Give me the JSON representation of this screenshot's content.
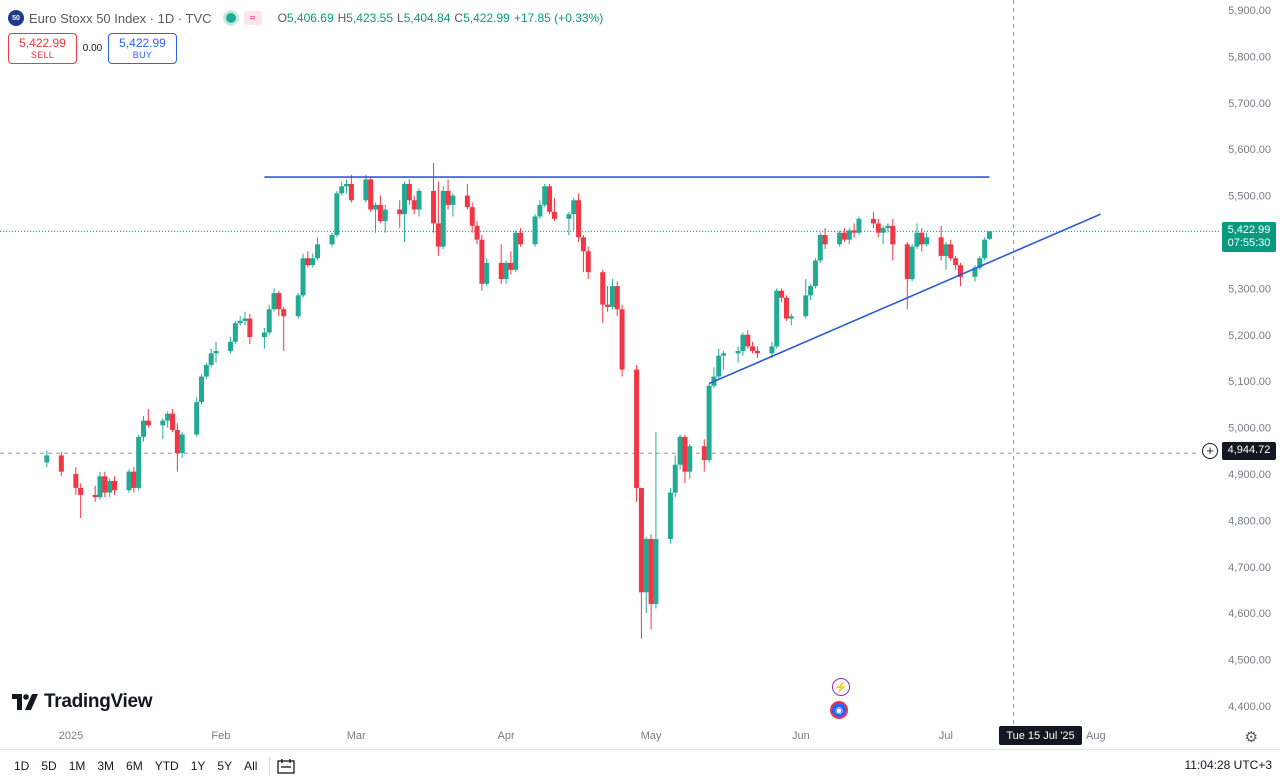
{
  "header": {
    "badge": "50",
    "title": "Euro Stoxx 50 Index · 1D · TVC",
    "ohlc": {
      "o_key": "O",
      "o": "5,406.69",
      "h_key": "H",
      "h": "5,423.55",
      "l_key": "L",
      "l": "5,404.84",
      "c_key": "C",
      "c": "5,422.99",
      "chg": "+17.85 (+0.33%)"
    }
  },
  "trade": {
    "sell_price": "5,422.99",
    "sell_label": "SELL",
    "spread": "0.00",
    "buy_price": "5,422.99",
    "buy_label": "BUY"
  },
  "brand": {
    "name": "TradingView"
  },
  "price_labels": {
    "current": "5,422.99",
    "countdown": "07:55:30",
    "crosshair": "4,944.72"
  },
  "crosshair_date": "Tue 15 Jul '25",
  "bottom": {
    "ranges": [
      "1D",
      "5D",
      "1M",
      "3M",
      "6M",
      "YTD",
      "1Y",
      "5Y",
      "All"
    ],
    "clock": "11:04:28 UTC+3"
  },
  "colors": {
    "up": "#22ab94",
    "down": "#f23645",
    "trendline": "#2a5bd7",
    "accent": "#2962ff"
  },
  "chart_data": {
    "type": "candlestick",
    "title": "",
    "ylim": [
      4350,
      5920
    ],
    "yticks": [
      4400,
      4500,
      4600,
      4700,
      4800,
      4900,
      5000,
      5100,
      5200,
      5300,
      5400,
      5500,
      5600,
      5700,
      5800,
      5900
    ],
    "ytick_labels": [
      "4,400.00",
      "4,500.00",
      "4,600.00",
      "4,700.00",
      "4,800.00",
      "4,900.00",
      "5,000.00",
      "5,100.00",
      "5,200.00",
      "5,300.00",
      "5,400.00",
      "5,500.00",
      "5,600.00",
      "5,700.00",
      "5,800.00",
      "5,900.00"
    ],
    "xticks": [
      {
        "label": "2025",
        "date": "2025-01-01"
      },
      {
        "label": "Feb",
        "date": "2025-02-01"
      },
      {
        "label": "Mar",
        "date": "2025-03-01"
      },
      {
        "label": "Apr",
        "date": "2025-04-01"
      },
      {
        "label": "May",
        "date": "2025-05-01"
      },
      {
        "label": "Jun",
        "date": "2025-06-01"
      },
      {
        "label": "Jul",
        "date": "2025-07-01"
      },
      {
        "label": "Aug",
        "date": "2025-08-01"
      }
    ],
    "candles": [
      [
        "2024-12-27",
        4925,
        4950,
        4915,
        4940
      ],
      [
        "2024-12-30",
        4940,
        4948,
        4895,
        4905
      ],
      [
        "2025-01-02",
        4900,
        4915,
        4855,
        4870
      ],
      [
        "2025-01-03",
        4870,
        4880,
        4805,
        4855
      ],
      [
        "2025-01-06",
        4855,
        4875,
        4840,
        4850
      ],
      [
        "2025-01-07",
        4850,
        4905,
        4845,
        4895
      ],
      [
        "2025-01-08",
        4895,
        4905,
        4850,
        4860
      ],
      [
        "2025-01-09",
        4860,
        4890,
        4850,
        4885
      ],
      [
        "2025-01-10",
        4885,
        4895,
        4855,
        4865
      ],
      [
        "2025-01-13",
        4865,
        4910,
        4860,
        4905
      ],
      [
        "2025-01-14",
        4905,
        4915,
        4860,
        4870
      ],
      [
        "2025-01-15",
        4870,
        4985,
        4865,
        4980
      ],
      [
        "2025-01-16",
        4980,
        5025,
        4970,
        5015
      ],
      [
        "2025-01-17",
        5015,
        5040,
        5000,
        5005
      ],
      [
        "2025-01-20",
        5005,
        5020,
        4975,
        5015
      ],
      [
        "2025-01-21",
        5015,
        5035,
        5000,
        5030
      ],
      [
        "2025-01-22",
        5030,
        5040,
        4990,
        4995
      ],
      [
        "2025-01-23",
        4995,
        5010,
        4905,
        4945
      ],
      [
        "2025-01-24",
        4945,
        4990,
        4935,
        4985
      ],
      [
        "2025-01-27",
        4985,
        5065,
        4980,
        5055
      ],
      [
        "2025-01-28",
        5055,
        5115,
        5050,
        5110
      ],
      [
        "2025-01-29",
        5110,
        5140,
        5105,
        5135
      ],
      [
        "2025-01-30",
        5135,
        5170,
        5130,
        5160
      ],
      [
        "2025-01-31",
        5160,
        5185,
        5140,
        5165
      ],
      [
        "2025-02-03",
        5165,
        5195,
        5160,
        5185
      ],
      [
        "2025-02-04",
        5185,
        5230,
        5180,
        5225
      ],
      [
        "2025-02-05",
        5225,
        5240,
        5220,
        5230
      ],
      [
        "2025-02-06",
        5230,
        5250,
        5220,
        5235
      ],
      [
        "2025-02-07",
        5235,
        5245,
        5180,
        5195
      ],
      [
        "2025-02-10",
        5195,
        5215,
        5170,
        5205
      ],
      [
        "2025-02-11",
        5205,
        5265,
        5200,
        5255
      ],
      [
        "2025-02-12",
        5255,
        5300,
        5250,
        5290
      ],
      [
        "2025-02-13",
        5290,
        5295,
        5240,
        5255
      ],
      [
        "2025-02-14",
        5255,
        5260,
        5165,
        5240
      ],
      [
        "2025-02-17",
        5240,
        5290,
        5235,
        5285
      ],
      [
        "2025-02-18",
        5285,
        5375,
        5280,
        5365
      ],
      [
        "2025-02-19",
        5365,
        5380,
        5345,
        5350
      ],
      [
        "2025-02-20",
        5350,
        5375,
        5345,
        5365
      ],
      [
        "2025-02-21",
        5365,
        5410,
        5360,
        5395
      ],
      [
        "2025-02-24",
        5395,
        5420,
        5390,
        5415
      ],
      [
        "2025-02-25",
        5415,
        5510,
        5410,
        5505
      ],
      [
        "2025-02-26",
        5505,
        5530,
        5500,
        5520
      ],
      [
        "2025-02-27",
        5520,
        5535,
        5505,
        5525
      ],
      [
        "2025-02-28",
        5525,
        5545,
        5485,
        5490
      ],
      [
        "2025-03-03",
        5490,
        5545,
        5485,
        5535
      ],
      [
        "2025-03-04",
        5535,
        5540,
        5465,
        5470
      ],
      [
        "2025-03-05",
        5470,
        5485,
        5420,
        5480
      ],
      [
        "2025-03-06",
        5480,
        5500,
        5440,
        5445
      ],
      [
        "2025-03-07",
        5445,
        5480,
        5420,
        5470
      ],
      [
        "2025-03-10",
        5470,
        5490,
        5430,
        5460
      ],
      [
        "2025-03-11",
        5460,
        5530,
        5400,
        5525
      ],
      [
        "2025-03-12",
        5525,
        5535,
        5480,
        5490
      ],
      [
        "2025-03-13",
        5490,
        5500,
        5460,
        5470
      ],
      [
        "2025-03-14",
        5470,
        5515,
        5455,
        5510
      ],
      [
        "2025-03-17",
        5510,
        5570,
        5420,
        5440
      ],
      [
        "2025-03-18",
        5440,
        5530,
        5370,
        5390
      ],
      [
        "2025-03-19",
        5390,
        5520,
        5385,
        5510
      ],
      [
        "2025-03-20",
        5510,
        5535,
        5470,
        5480
      ],
      [
        "2025-03-21",
        5480,
        5505,
        5455,
        5500
      ],
      [
        "2025-03-24",
        5500,
        5525,
        5470,
        5475
      ],
      [
        "2025-03-25",
        5475,
        5485,
        5420,
        5435
      ],
      [
        "2025-03-26",
        5435,
        5445,
        5395,
        5405
      ],
      [
        "2025-03-27",
        5405,
        5415,
        5295,
        5310
      ],
      [
        "2025-03-28",
        5310,
        5365,
        5305,
        5355
      ],
      [
        "2025-03-31",
        5355,
        5395,
        5310,
        5320
      ],
      [
        "2025-04-01",
        5320,
        5360,
        5310,
        5355
      ],
      [
        "2025-04-02",
        5355,
        5380,
        5330,
        5340
      ],
      [
        "2025-04-03",
        5340,
        5425,
        5335,
        5420
      ],
      [
        "2025-04-04",
        5420,
        5430,
        5390,
        5395
      ],
      [
        "2025-04-07",
        5395,
        5460,
        5390,
        5455
      ],
      [
        "2025-04-08",
        5455,
        5490,
        5450,
        5480
      ],
      [
        "2025-04-09",
        5480,
        5525,
        5475,
        5520
      ],
      [
        "2025-04-10",
        5520,
        5525,
        5460,
        5465
      ],
      [
        "2025-04-11",
        5465,
        5495,
        5445,
        5450
      ],
      [
        "2025-04-14",
        5450,
        5465,
        5415,
        5460
      ],
      [
        "2025-04-15",
        5460,
        5495,
        5425,
        5490
      ],
      [
        "2025-04-16",
        5490,
        5505,
        5400,
        5410
      ],
      [
        "2025-04-17",
        5410,
        5415,
        5335,
        5380
      ],
      [
        "2025-04-18",
        5380,
        5390,
        5320,
        5335
      ],
      [
        "2025-04-21",
        5335,
        5340,
        5225,
        5265
      ],
      [
        "2025-04-22",
        5265,
        5305,
        5250,
        5260
      ],
      [
        "2025-04-23",
        5260,
        5320,
        5255,
        5305
      ],
      [
        "2025-04-24",
        5305,
        5315,
        5240,
        5255
      ],
      [
        "2025-04-25",
        5255,
        5265,
        5110,
        5125
      ],
      [
        "2025-04-28",
        5125,
        5135,
        4840,
        4870
      ],
      [
        "2025-04-29",
        4870,
        4870,
        4545,
        4645
      ],
      [
        "2025-04-30",
        4645,
        4765,
        4600,
        4760
      ],
      [
        "2025-05-01",
        4760,
        4770,
        4565,
        4620
      ],
      [
        "2025-05-02",
        4620,
        4990,
        4610,
        4760
      ],
      [
        "2025-05-05",
        4760,
        4870,
        4750,
        4860
      ],
      [
        "2025-05-06",
        4860,
        4940,
        4850,
        4920
      ],
      [
        "2025-05-07",
        4920,
        4985,
        4910,
        4980
      ],
      [
        "2025-05-08",
        4980,
        4985,
        4880,
        4905
      ],
      [
        "2025-05-09",
        4905,
        4965,
        4890,
        4960
      ],
      [
        "2025-05-12",
        4960,
        4975,
        4905,
        4930
      ],
      [
        "2025-05-13",
        4930,
        5095,
        4925,
        5090
      ],
      [
        "2025-05-14",
        5090,
        5130,
        5085,
        5110
      ],
      [
        "2025-05-15",
        5110,
        5170,
        5105,
        5155
      ],
      [
        "2025-05-16",
        5155,
        5165,
        5125,
        5160
      ],
      [
        "2025-05-19",
        5160,
        5175,
        5140,
        5165
      ],
      [
        "2025-05-20",
        5165,
        5205,
        5155,
        5200
      ],
      [
        "2025-05-21",
        5200,
        5210,
        5170,
        5175
      ],
      [
        "2025-05-22",
        5175,
        5185,
        5160,
        5165
      ],
      [
        "2025-05-23",
        5165,
        5175,
        5150,
        5160
      ],
      [
        "2025-05-26",
        5160,
        5185,
        5150,
        5175
      ],
      [
        "2025-05-27",
        5175,
        5300,
        5170,
        5295
      ],
      [
        "2025-05-28",
        5295,
        5300,
        5270,
        5280
      ],
      [
        "2025-05-29",
        5280,
        5285,
        5230,
        5235
      ],
      [
        "2025-05-30",
        5235,
        5245,
        5220,
        5240
      ],
      [
        "2025-06-02",
        5240,
        5320,
        5235,
        5285
      ],
      [
        "2025-06-03",
        5285,
        5310,
        5275,
        5305
      ],
      [
        "2025-06-04",
        5305,
        5365,
        5300,
        5360
      ],
      [
        "2025-06-05",
        5360,
        5420,
        5355,
        5415
      ],
      [
        "2025-06-06",
        5415,
        5430,
        5385,
        5395
      ],
      [
        "2025-06-09",
        5395,
        5425,
        5390,
        5420
      ],
      [
        "2025-06-10",
        5420,
        5430,
        5400,
        5405
      ],
      [
        "2025-06-11",
        5405,
        5430,
        5395,
        5425
      ],
      [
        "2025-06-12",
        5425,
        5440,
        5410,
        5420
      ],
      [
        "2025-06-13",
        5420,
        5455,
        5415,
        5450
      ],
      [
        "2025-06-16",
        5450,
        5465,
        5430,
        5440
      ],
      [
        "2025-06-17",
        5440,
        5450,
        5410,
        5420
      ],
      [
        "2025-06-18",
        5420,
        5435,
        5395,
        5430
      ],
      [
        "2025-06-19",
        5430,
        5440,
        5420,
        5435
      ],
      [
        "2025-06-20",
        5435,
        5450,
        5360,
        5395
      ],
      [
        "2025-06-23",
        5395,
        5400,
        5255,
        5320
      ],
      [
        "2025-06-24",
        5320,
        5395,
        5315,
        5390
      ],
      [
        "2025-06-25",
        5390,
        5440,
        5385,
        5420
      ],
      [
        "2025-06-26",
        5420,
        5430,
        5380,
        5395
      ],
      [
        "2025-06-27",
        5395,
        5420,
        5390,
        5410
      ],
      [
        "2025-06-30",
        5410,
        5435,
        5360,
        5370
      ],
      [
        "2025-07-01",
        5370,
        5400,
        5340,
        5395
      ],
      [
        "2025-07-02",
        5395,
        5405,
        5360,
        5365
      ],
      [
        "2025-07-03",
        5365,
        5370,
        5340,
        5350
      ],
      [
        "2025-07-04",
        5350,
        5355,
        5305,
        5325
      ],
      [
        "2025-07-07",
        5325,
        5350,
        5315,
        5345
      ],
      [
        "2025-07-08",
        5345,
        5370,
        5340,
        5365
      ],
      [
        "2025-07-09",
        5365,
        5410,
        5360,
        5405
      ],
      [
        "2025-07-10",
        5406.69,
        5423.55,
        5404.84,
        5422.99
      ]
    ],
    "drawings": [
      {
        "type": "horizontal_segment",
        "price": 5540,
        "from": "2025-02-10",
        "to": "2025-07-10"
      },
      {
        "type": "trendline",
        "from": [
          "2025-05-13",
          5095
        ],
        "to": [
          "2025-08-02",
          5460
        ]
      }
    ],
    "reference_lines": [
      {
        "type": "current_price",
        "price": 5422.99
      },
      {
        "type": "crosshair",
        "price": 4944.72,
        "date": "2025-07-15"
      }
    ],
    "grid": false
  }
}
